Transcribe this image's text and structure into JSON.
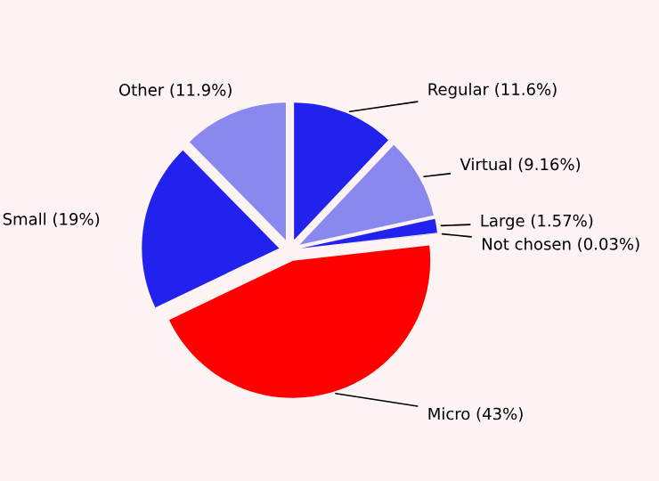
{
  "chart_data": {
    "type": "pie",
    "categories": [
      "Regular (11.6%)",
      "Virtual (9.16%)",
      "Large (1.57%)",
      "Not chosen (0.03%)",
      "Micro (43%)",
      "Small (19%)",
      "Other (11.9%)"
    ],
    "values": [
      11.6,
      9.16,
      1.57,
      0.03,
      43,
      19,
      11.9
    ],
    "colors": [
      "#2222ee",
      "#8888ee",
      "#2222ee",
      "#8888ee",
      "#ff0000",
      "#2222ee",
      "#8888ee"
    ],
    "legend": false
  }
}
